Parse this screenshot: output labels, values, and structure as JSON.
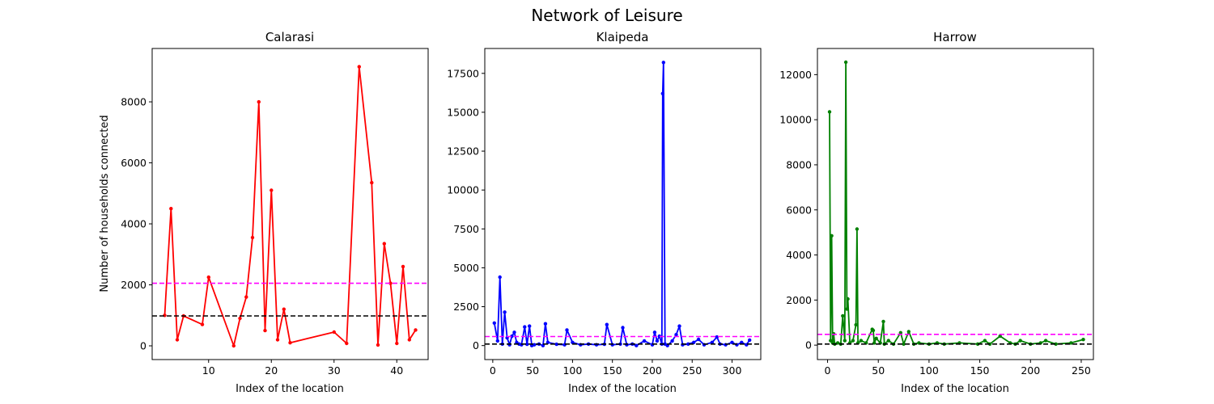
{
  "figure": {
    "title": "Network of Leisure",
    "xlabel": "Index of the location",
    "ylabel": "Number of households connected"
  },
  "chart_data": [
    {
      "type": "line",
      "title": "Calarasi",
      "xlabel": "Index of the location",
      "ylabel": "Number of households connected",
      "xlim": [
        1.0,
        45.0
      ],
      "ylim": [
        -450,
        9750
      ],
      "xticks": [
        10,
        20,
        30,
        40
      ],
      "yticks": [
        0,
        2000,
        4000,
        6000,
        8000
      ],
      "color": "#ff0000",
      "reference_lines": [
        {
          "y": 2050,
          "color": "#ff00ff",
          "style": "dashed"
        },
        {
          "y": 980,
          "color": "#000000",
          "style": "dashed"
        }
      ],
      "x": [
        3,
        4,
        5,
        6,
        9,
        10,
        14,
        15,
        16,
        17,
        18,
        19,
        20,
        21,
        22,
        23,
        30,
        32,
        34,
        36,
        37,
        38,
        39,
        40,
        41,
        42,
        43
      ],
      "y": [
        1000,
        4500,
        200,
        980,
        700,
        2250,
        0,
        900,
        1600,
        3550,
        8000,
        500,
        5100,
        200,
        1200,
        100,
        450,
        80,
        9150,
        5350,
        30,
        3350,
        2050,
        80,
        2600,
        200,
        520
      ]
    },
    {
      "type": "line",
      "title": "Klaipeda",
      "xlabel": "Index of the location",
      "ylabel": "",
      "xlim": [
        -10,
        336
      ],
      "ylim": [
        -900,
        19100
      ],
      "xticks": [
        0,
        50,
        100,
        150,
        200,
        250,
        300
      ],
      "yticks": [
        0,
        2500,
        5000,
        7500,
        10000,
        12500,
        15000,
        17500
      ],
      "color": "#0000ff",
      "reference_lines": [
        {
          "y": 580,
          "color": "#ff00ff",
          "style": "dashed"
        },
        {
          "y": 100,
          "color": "#000000",
          "style": "dashed"
        }
      ],
      "x": [
        2,
        6,
        9,
        12,
        15,
        18,
        21,
        24,
        27,
        30,
        33,
        36,
        40,
        43,
        46,
        49,
        52,
        58,
        63,
        66,
        69,
        80,
        90,
        93,
        100,
        110,
        120,
        130,
        140,
        143,
        150,
        160,
        163,
        168,
        175,
        180,
        190,
        200,
        203,
        206,
        209,
        212,
        213,
        214,
        216,
        219,
        225,
        230,
        234,
        238,
        245,
        252,
        258,
        265,
        275,
        281,
        285,
        292,
        300,
        306,
        312,
        318,
        322
      ],
      "y": [
        1450,
        300,
        4400,
        100,
        2150,
        500,
        50,
        600,
        850,
        200,
        100,
        50,
        1200,
        80,
        1250,
        0,
        50,
        100,
        0,
        1400,
        200,
        80,
        50,
        1000,
        200,
        50,
        100,
        50,
        80,
        1350,
        50,
        100,
        1150,
        50,
        100,
        0,
        300,
        50,
        850,
        300,
        600,
        100,
        16200,
        18200,
        100,
        0,
        300,
        700,
        1250,
        50,
        100,
        200,
        400,
        50,
        200,
        550,
        100,
        50,
        200,
        50,
        200,
        50,
        350
      ]
    },
    {
      "type": "line",
      "title": "Harrow",
      "xlabel": "Index of the location",
      "ylabel": "",
      "xlim": [
        -10,
        262
      ],
      "ylim": [
        -640,
        13160
      ],
      "xticks": [
        0,
        50,
        100,
        150,
        200,
        250
      ],
      "yticks": [
        0,
        2000,
        4000,
        6000,
        8000,
        10000,
        12000
      ],
      "color": "#008000",
      "reference_lines": [
        {
          "y": 480,
          "color": "#ff00ff",
          "style": "dashed"
        },
        {
          "y": 50,
          "color": "#000000",
          "style": "dashed"
        }
      ],
      "x": [
        2,
        3,
        4,
        5,
        6,
        7,
        10,
        13,
        15,
        17,
        18,
        19,
        20,
        22,
        25,
        28,
        29,
        30,
        33,
        38,
        44,
        45,
        46,
        48,
        52,
        55,
        56,
        60,
        65,
        72,
        75,
        80,
        85,
        90,
        100,
        108,
        115,
        130,
        148,
        155,
        160,
        170,
        180,
        185,
        190,
        200,
        210,
        215,
        225,
        240,
        252
      ],
      "y": [
        10350,
        200,
        4850,
        100,
        500,
        50,
        100,
        50,
        1300,
        200,
        12550,
        1600,
        2050,
        100,
        200,
        900,
        5150,
        100,
        200,
        100,
        700,
        650,
        100,
        300,
        100,
        1050,
        50,
        200,
        50,
        550,
        50,
        600,
        50,
        100,
        50,
        100,
        50,
        100,
        50,
        200,
        50,
        400,
        100,
        50,
        200,
        50,
        100,
        200,
        50,
        100,
        250
      ]
    }
  ]
}
